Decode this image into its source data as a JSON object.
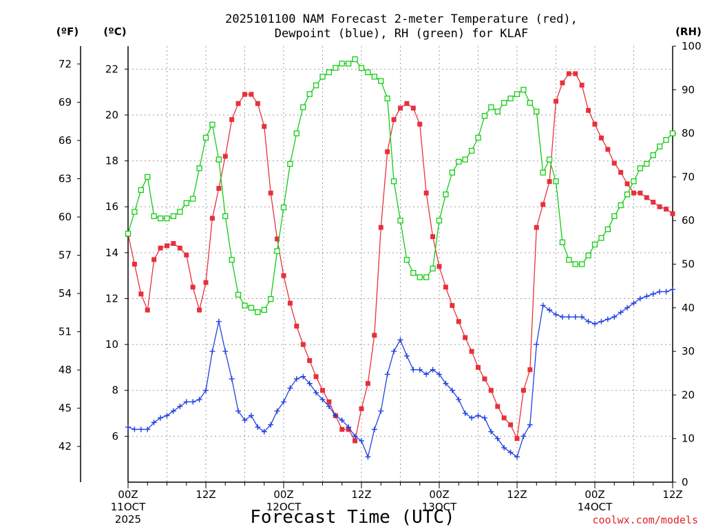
{
  "chart_data": {
    "type": "line",
    "title": "2025101100 NAM Forecast 2-meter Temperature (red), Dewpoint (blue), RH (green) for KLAF",
    "title_lines": [
      "2025101100 NAM Forecast 2-meter Temperature (red),",
      "Dewpoint (blue), RH (green) for KLAF"
    ],
    "xlabel": "Forecast Time (UTC)",
    "units": {
      "fahrenheit": "(ºF)",
      "celsius": "(ºC)",
      "rh": "(RH)"
    },
    "x_hours_range": [
      0,
      84
    ],
    "x_ticks": [
      {
        "hour": 0,
        "lines": [
          "00Z",
          "11OCT",
          "2025"
        ]
      },
      {
        "hour": 12,
        "lines": [
          "12Z"
        ]
      },
      {
        "hour": 24,
        "lines": [
          "00Z",
          "12OCT"
        ]
      },
      {
        "hour": 36,
        "lines": [
          "12Z"
        ]
      },
      {
        "hour": 48,
        "lines": [
          "00Z",
          "13OCT"
        ]
      },
      {
        "hour": 60,
        "lines": [
          "12Z"
        ]
      },
      {
        "hour": 72,
        "lines": [
          "00Z",
          "14OCT"
        ]
      },
      {
        "hour": 84,
        "lines": [
          "12Z"
        ]
      }
    ],
    "celsius_range": [
      4.0,
      23.0
    ],
    "rh_range": [
      0,
      100
    ],
    "celsius_ticks": [
      "6",
      "8",
      "10",
      "12",
      "14",
      "16",
      "18",
      "20",
      "22"
    ],
    "fahrenheit_ticks": [
      "42",
      "45",
      "48",
      "51",
      "54",
      "57",
      "60",
      "63",
      "66",
      "69",
      "72"
    ],
    "rh_ticks": [
      "0",
      "10",
      "20",
      "30",
      "40",
      "50",
      "60",
      "70",
      "80",
      "90",
      "100"
    ],
    "series": [
      {
        "name": "Temperature",
        "unit": "C",
        "color": "#e8303a",
        "marker": "filled-square",
        "values": [
          14.8,
          13.5,
          12.2,
          11.5,
          13.7,
          14.2,
          14.3,
          14.4,
          14.2,
          13.9,
          12.5,
          11.5,
          12.7,
          15.5,
          16.8,
          18.2,
          19.8,
          20.5,
          20.9,
          20.9,
          20.5,
          19.5,
          16.6,
          14.6,
          13.0,
          11.8,
          10.8,
          10.0,
          9.3,
          8.6,
          8.0,
          7.5,
          6.9,
          6.3,
          6.3,
          5.8,
          7.2,
          8.3,
          10.4,
          15.1,
          18.4,
          19.8,
          20.3,
          20.5,
          20.3,
          19.6,
          16.6,
          14.7,
          13.4,
          12.5,
          11.7,
          11.0,
          10.3,
          9.7,
          9.0,
          8.5,
          8.0,
          7.3,
          6.8,
          6.5,
          5.9,
          8.0,
          8.9,
          15.1,
          16.1,
          17.1,
          20.6,
          21.4,
          21.8,
          21.8,
          21.3,
          20.2,
          19.6,
          19.0,
          18.5,
          17.9,
          17.5,
          17.0,
          16.6,
          16.6,
          16.4,
          16.2,
          16.0,
          15.9,
          15.7
        ]
      },
      {
        "name": "Dewpoint",
        "unit": "C",
        "color": "#2040e0",
        "marker": "plus",
        "values": [
          6.4,
          6.3,
          6.3,
          6.3,
          6.6,
          6.8,
          6.9,
          7.1,
          7.3,
          7.5,
          7.5,
          7.6,
          8.0,
          9.7,
          11.0,
          9.7,
          8.5,
          7.1,
          6.7,
          6.9,
          6.4,
          6.2,
          6.5,
          7.1,
          7.5,
          8.1,
          8.5,
          8.6,
          8.3,
          7.9,
          7.6,
          7.3,
          6.9,
          6.7,
          6.4,
          6.0,
          5.8,
          5.1,
          6.3,
          7.1,
          8.7,
          9.7,
          10.2,
          9.5,
          8.9,
          8.9,
          8.7,
          8.9,
          8.7,
          8.3,
          8.0,
          7.6,
          7.0,
          6.8,
          6.9,
          6.8,
          6.2,
          5.9,
          5.5,
          5.3,
          5.1,
          6.0,
          6.5,
          10.0,
          11.7,
          11.5,
          11.3,
          11.2,
          11.2,
          11.2,
          11.2,
          11.0,
          10.9,
          11.0,
          11.1,
          11.2,
          11.4,
          11.6,
          11.8,
          12.0,
          12.1,
          12.2,
          12.3,
          12.3,
          12.4
        ]
      },
      {
        "name": "RH",
        "unit": "%",
        "color": "#10cc10",
        "marker": "open-square",
        "values": [
          57,
          62,
          67,
          70,
          61,
          60.5,
          60.5,
          61,
          62,
          64,
          65,
          72,
          79,
          82,
          74,
          61,
          51,
          43,
          40.5,
          40,
          39,
          39.5,
          42,
          53,
          63,
          73,
          80,
          86,
          89,
          91,
          93,
          94,
          95,
          96,
          96,
          97,
          95,
          94,
          93,
          92,
          88,
          69,
          60,
          51,
          48,
          47,
          47,
          49,
          60,
          66,
          71,
          73.5,
          74,
          76,
          79,
          84,
          86,
          85,
          87,
          88,
          89,
          90,
          87,
          85,
          71,
          74,
          69,
          55,
          51,
          50,
          50,
          52,
          54.5,
          56,
          58,
          61,
          63.5,
          66,
          69,
          72,
          73,
          75,
          77,
          78.5,
          80
        ]
      }
    ]
  },
  "credit": "coolwx.com/models"
}
